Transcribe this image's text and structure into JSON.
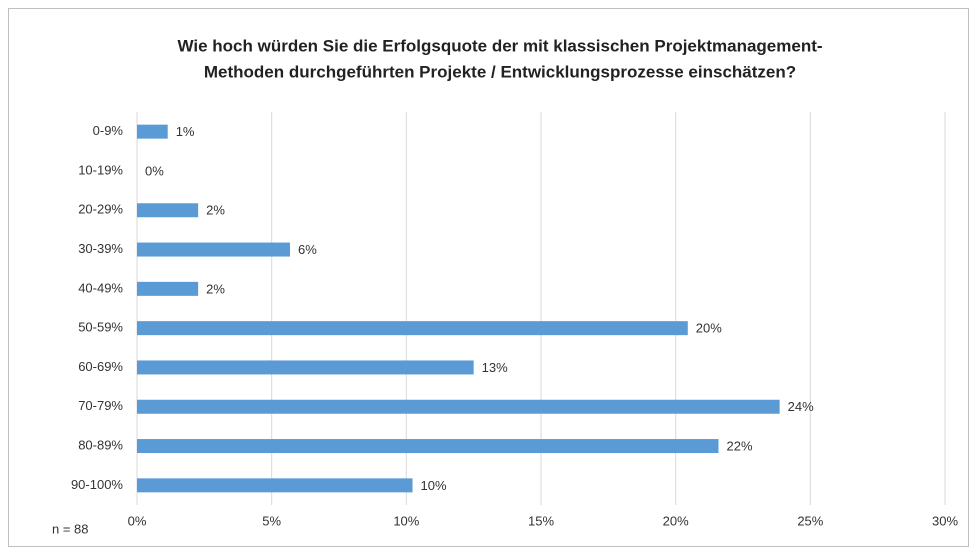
{
  "chart_data": {
    "type": "bar",
    "orientation": "horizontal",
    "title": [
      "Wie hoch würden Sie die Erfolgsquote der mit klassischen Projektmanagement-",
      "Methoden durchgeführten Projekte / Entwicklungsprozesse einschätzen?"
    ],
    "categories": [
      "0-9%",
      "10-19%",
      "20-29%",
      "30-39%",
      "40-49%",
      "50-59%",
      "60-69%",
      "70-79%",
      "80-89%",
      "90-100%"
    ],
    "values": [
      1.14,
      0,
      2.27,
      5.68,
      2.27,
      20.45,
      12.5,
      23.86,
      21.59,
      10.23
    ],
    "value_labels": [
      "1%",
      "0%",
      "2%",
      "6%",
      "2%",
      "20%",
      "13%",
      "24%",
      "22%",
      "10%"
    ],
    "color": "#5b9bd5",
    "xlim": [
      0,
      30
    ],
    "xticks": [
      {
        "value": 0,
        "label": "0%"
      },
      {
        "value": 5,
        "label": "5%"
      },
      {
        "value": 10,
        "label": "10%"
      },
      {
        "value": 15,
        "label": "15%"
      },
      {
        "value": 20,
        "label": "20%"
      },
      {
        "value": 25,
        "label": "25%"
      },
      {
        "value": 30,
        "label": "30%"
      }
    ],
    "grid": true,
    "annotation": "n = 88"
  }
}
